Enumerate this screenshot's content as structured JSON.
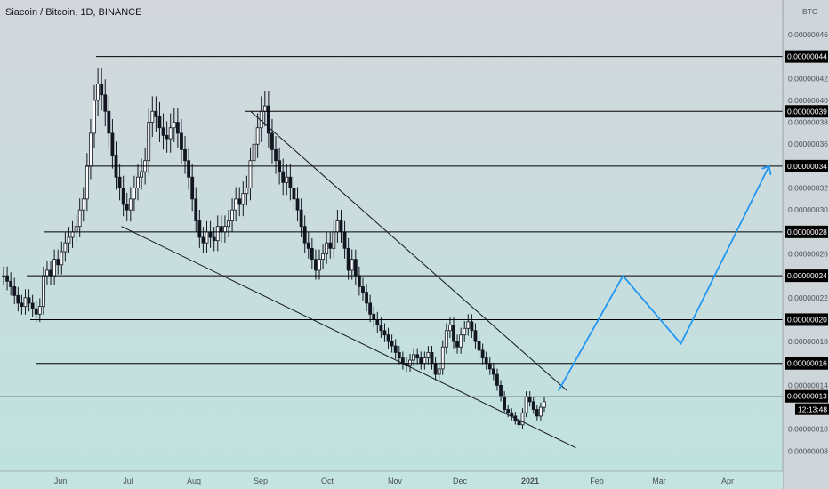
{
  "header": {
    "title": "Siacoin / Bitcoin, 1D, BINANCE"
  },
  "currency_label": "BTC",
  "colors": {
    "background_top": "#d3d7dc",
    "background_bottom": "#bfe3df",
    "candles": "#131722",
    "levels": "#000000",
    "projection": "#2196f3",
    "label_bg": "#000000",
    "label_text": "#ffffff",
    "axis_text": "#4a4f5a"
  },
  "chart_data": {
    "type": "candlestick",
    "title": "Siacoin / Bitcoin, 1D, BINANCE",
    "ylabel": "BTC",
    "x_labels": [
      "Jun",
      "Jul",
      "Aug",
      "Sep",
      "Oct",
      "Nov",
      "Dec",
      "2021",
      "Feb",
      "Mar",
      "Apr"
    ],
    "y_ticks": [
      "0.00000046",
      "0.00000042",
      "0.00000040",
      "0.00000038",
      "0.00000036",
      "0.00000032",
      "0.00000030",
      "0.00000026",
      "0.00000022",
      "0.00000018",
      "0.00000014",
      "0.00000010",
      "0.00000008"
    ],
    "y_range": [
      6e-08,
      4.9e-07
    ],
    "horizontal_levels": [
      {
        "value": 4.4e-07,
        "label": "0.00000044"
      },
      {
        "value": 3.9e-07,
        "label": "0.00000039"
      },
      {
        "value": 3.4e-07,
        "label": "0.00000034"
      },
      {
        "value": 2.8e-07,
        "label": "0.00000028"
      },
      {
        "value": 2.4e-07,
        "label": "0.00000024"
      },
      {
        "value": 2e-07,
        "label": "0.00000020"
      },
      {
        "value": 1.6e-07,
        "label": "0.00000016"
      }
    ],
    "last_price": {
      "value": 1.3e-07,
      "label": "0.00000013"
    },
    "countdown": "12:13:48",
    "upper_trendline": [
      [
        3.9e-07,
        "2020-08-27"
      ],
      [
        1.35e-07,
        "2021-01-18"
      ]
    ],
    "lower_trendline": [
      [
        2.85e-07,
        "2020-06-29"
      ],
      [
        8.3e-08,
        "2021-01-22"
      ]
    ],
    "projection": [
      {
        "date": "2021-01-14",
        "value": 1.35e-07
      },
      {
        "date": "2021-02-13",
        "value": 2.4e-07
      },
      {
        "date": "2021-03-11",
        "value": 1.78e-07
      },
      {
        "date": "2021-04-20",
        "value": 3.4e-07
      }
    ],
    "closes": [
      2.4e-07,
      2.35e-07,
      2.3e-07,
      2.22e-07,
      2.15e-07,
      2.12e-07,
      2.2e-07,
      2.15e-07,
      2.1e-07,
      2.05e-07,
      2.12e-07,
      2.4e-07,
      2.45e-07,
      2.4e-07,
      2.55e-07,
      2.5e-07,
      2.62e-07,
      2.7e-07,
      2.75e-07,
      2.8e-07,
      2.85e-07,
      3e-07,
      3.1e-07,
      3.4e-07,
      3.7e-07,
      4e-07,
      4.15e-07,
      4.05e-07,
      3.9e-07,
      3.7e-07,
      3.5e-07,
      3.3e-07,
      3.2e-07,
      3.05e-07,
      3e-07,
      3.1e-07,
      3.2e-07,
      3.3e-07,
      3.35e-07,
      3.45e-07,
      3.8e-07,
      3.9e-07,
      3.85e-07,
      3.75e-07,
      3.68e-07,
      3.65e-07,
      3.75e-07,
      3.8e-07,
      3.7e-07,
      3.55e-07,
      3.45e-07,
      3.3e-07,
      3.1e-07,
      2.9e-07,
      2.75e-07,
      2.7e-07,
      2.8e-07,
      2.75e-07,
      2.72e-07,
      2.85e-07,
      2.8e-07,
      2.85e-07,
      2.9e-07,
      3e-07,
      3.1e-07,
      3.05e-07,
      3.15e-07,
      3.2e-07,
      3.45e-07,
      3.6e-07,
      3.75e-07,
      3.9e-07,
      3.95e-07,
      3.7e-07,
      3.55e-07,
      3.45e-07,
      3.35e-07,
      3.25e-07,
      3.3e-07,
      3.2e-07,
      3.1e-07,
      3e-07,
      2.85e-07,
      2.7e-07,
      2.65e-07,
      2.55e-07,
      2.45e-07,
      2.55e-07,
      2.6e-07,
      2.7e-07,
      2.65e-07,
      2.8e-07,
      2.9e-07,
      2.8e-07,
      2.65e-07,
      2.45e-07,
      2.55e-07,
      2.4e-07,
      2.3e-07,
      2.25e-07,
      2.15e-07,
      2.05e-07,
      2e-07,
      1.95e-07,
      1.9e-07,
      1.86e-07,
      1.8e-07,
      1.76e-07,
      1.7e-07,
      1.65e-07,
      1.6e-07,
      1.58e-07,
      1.63e-07,
      1.68e-07,
      1.65e-07,
      1.6e-07,
      1.65e-07,
      1.7e-07,
      1.6e-07,
      1.5e-07,
      1.55e-07,
      1.75e-07,
      1.9e-07,
      1.95e-07,
      1.8e-07,
      1.75e-07,
      1.86e-07,
      1.92e-07,
      1.98e-07,
      1.9e-07,
      1.8e-07,
      1.72e-07,
      1.65e-07,
      1.6e-07,
      1.55e-07,
      1.5e-07,
      1.4e-07,
      1.3e-07,
      1.18e-07,
      1.15e-07,
      1.12e-07,
      1.08e-07,
      1.04e-07,
      1.15e-07,
      1.3e-07,
      1.25e-07,
      1.18e-07,
      1.12e-07,
      1.2e-07,
      1.25e-07
    ]
  }
}
